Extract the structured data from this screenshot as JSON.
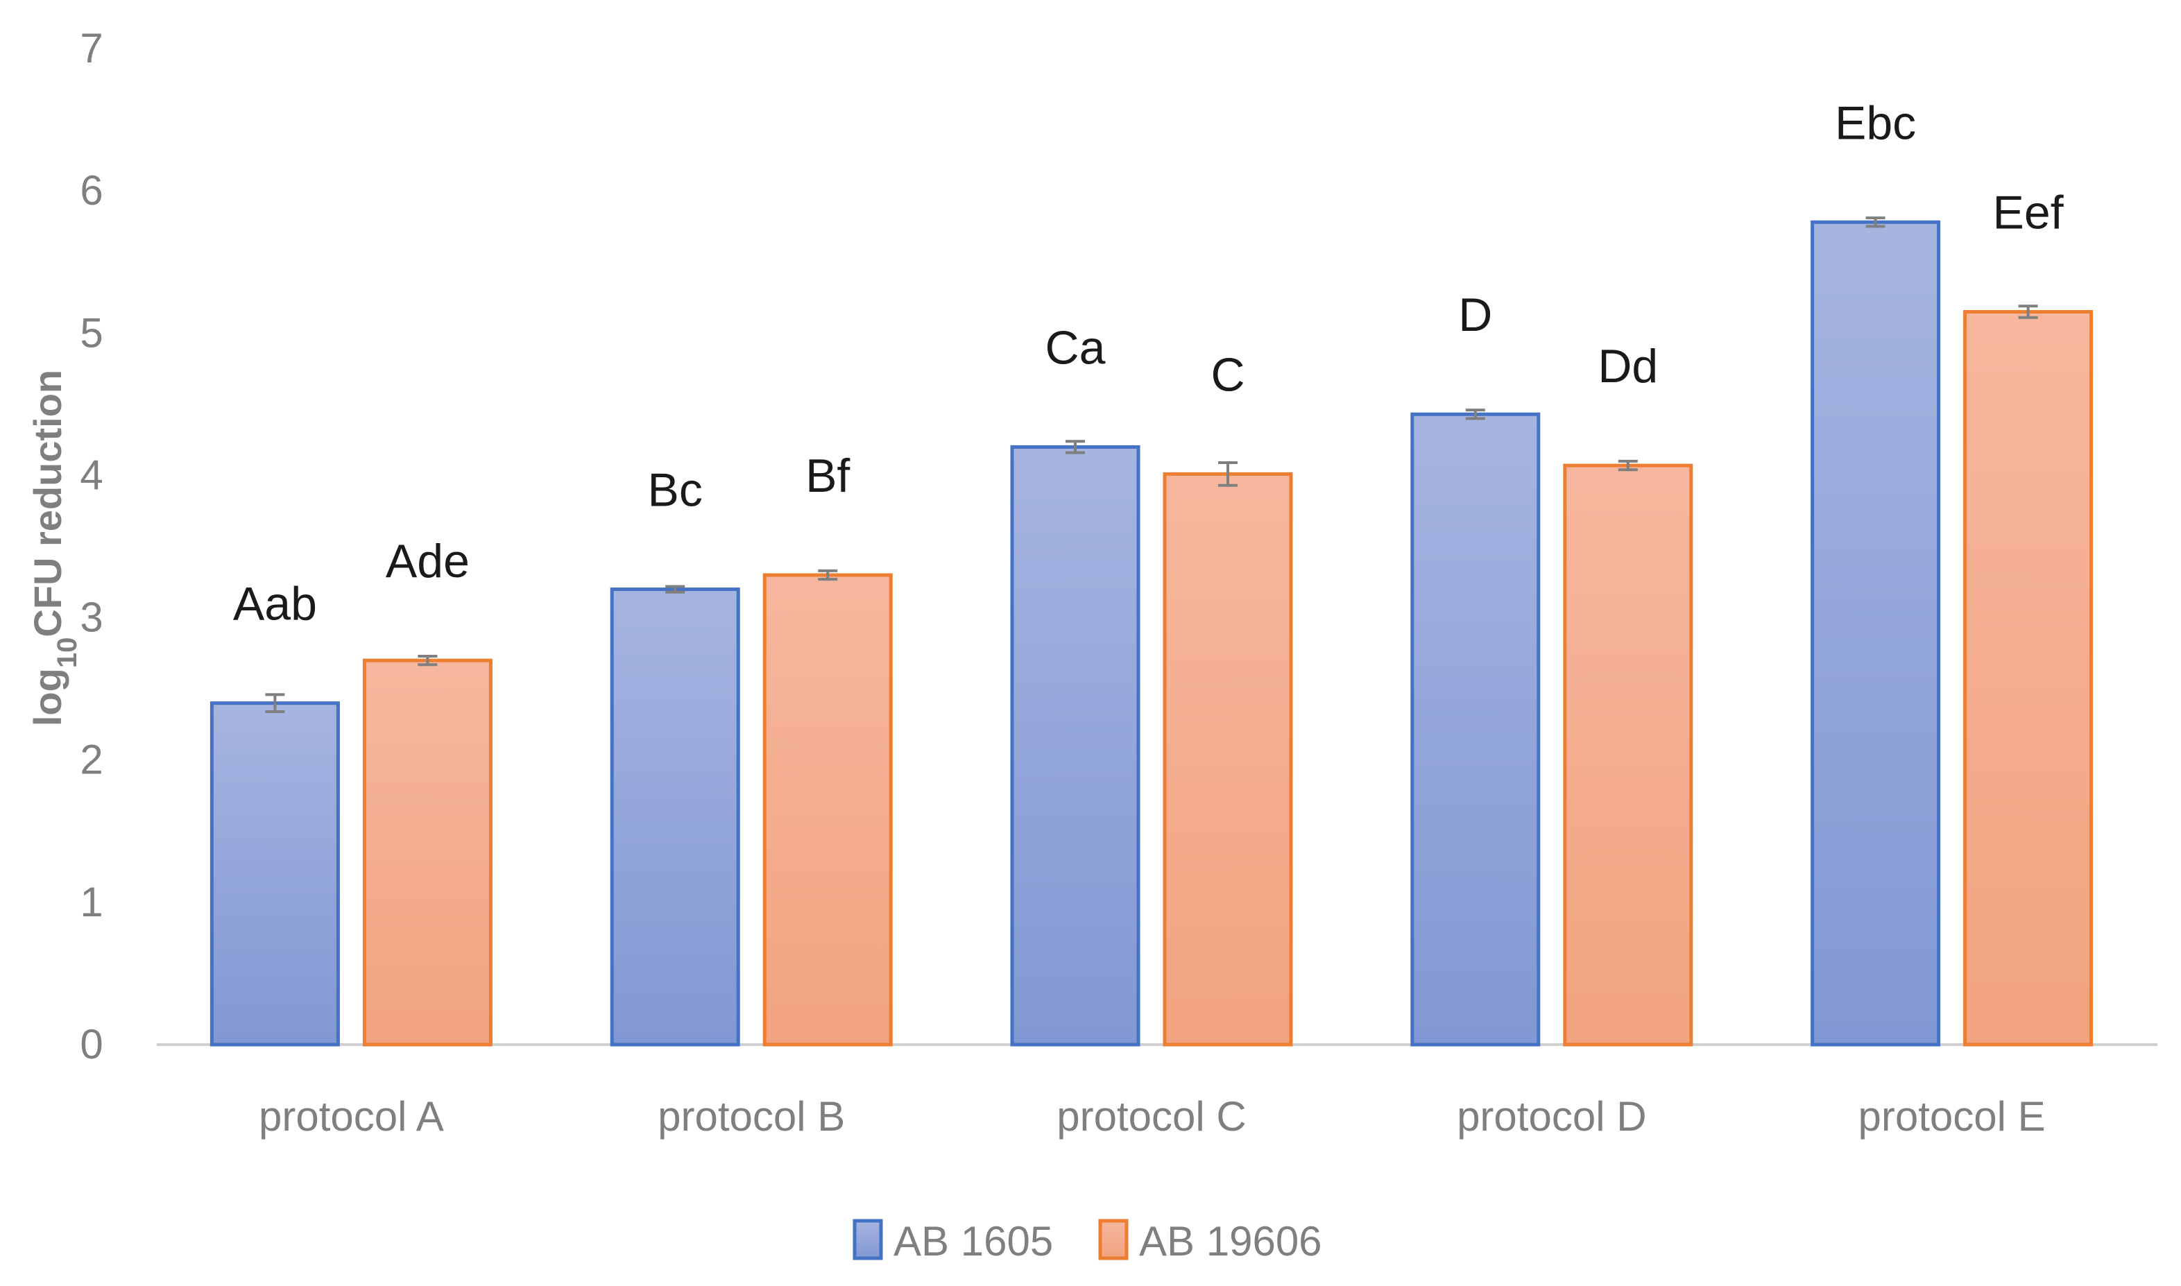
{
  "chart_data": {
    "type": "bar",
    "title": "",
    "xlabel": "",
    "ylabel": {
      "prefix": "log",
      "subscript": "10",
      "suffix": "CFU reduction"
    },
    "ylim": [
      0,
      7
    ],
    "yticks": [
      0,
      1,
      2,
      3,
      4,
      5,
      6,
      7
    ],
    "grid": false,
    "legend_position": "bottom-center",
    "categories": [
      "protocol A",
      "protocol B",
      "protocol C",
      "protocol D",
      "protocol E"
    ],
    "series": [
      {
        "name": "AB 1605",
        "fill": "#97a9dc",
        "fill_top": "#a6b4e0",
        "fill_bottom": "#8198d4",
        "stroke": "#4472c4",
        "values": [
          2.4,
          3.2,
          4.2,
          4.43,
          5.78
        ],
        "errors": [
          0.06,
          0.02,
          0.04,
          0.03,
          0.03
        ],
        "labels": [
          "Aab",
          "Bc",
          "Ca",
          "D",
          "Ebc"
        ]
      },
      {
        "name": "AB 19606",
        "fill": "#f3ab8c",
        "fill_top": "#f6b79e",
        "fill_bottom": "#f2a37f",
        "stroke": "#ed7d31",
        "values": [
          2.7,
          3.3,
          4.01,
          4.07,
          5.15
        ],
        "errors": [
          0.03,
          0.03,
          0.08,
          0.03,
          0.04
        ],
        "labels": [
          "Ade",
          "Bf",
          "C",
          "Dd",
          "Eef"
        ]
      }
    ]
  }
}
